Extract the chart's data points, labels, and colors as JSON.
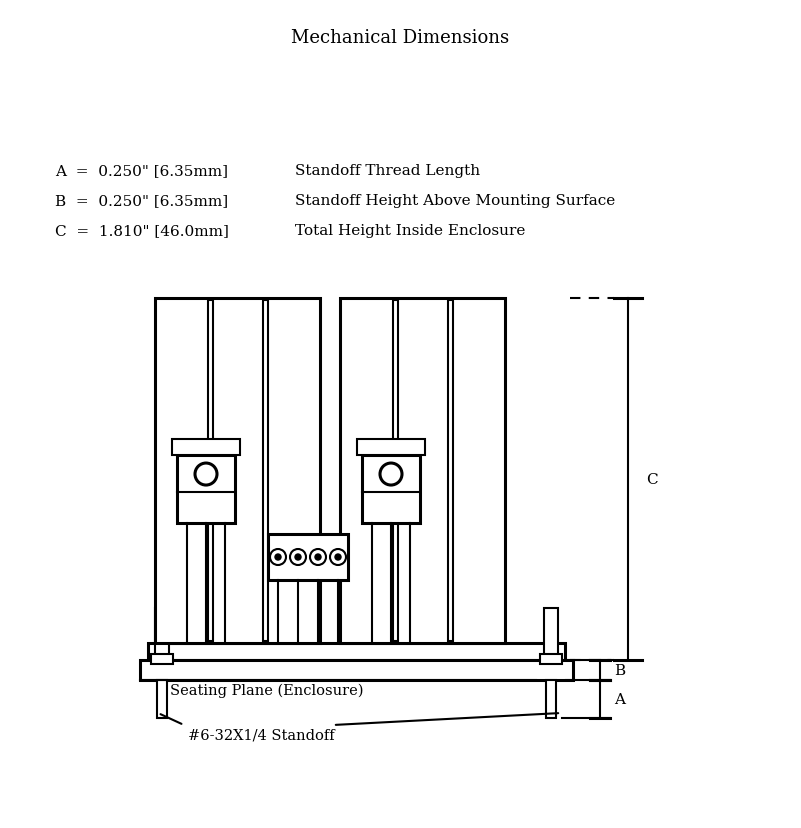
{
  "title": "Mechanical Dimensions",
  "title_fontsize": 13,
  "dim_A_label": "A  =  0.250\" [6.35mm]",
  "dim_A_desc": "Standoff Thread Length",
  "dim_B_label": "B  =  0.250\" [6.35mm]",
  "dim_B_desc": "Standoff Height Above Mounting Surface",
  "dim_C_label": "C  =  1.810\" [46.0mm]",
  "dim_C_desc": "Total Height Inside Enclosure",
  "text_fontsize": 11,
  "line_color": "#000000",
  "bg_color": "#ffffff",
  "label_seating": "Seating Plane (Enclosure)",
  "label_standoff": "#6-32X1/4 Standoff"
}
